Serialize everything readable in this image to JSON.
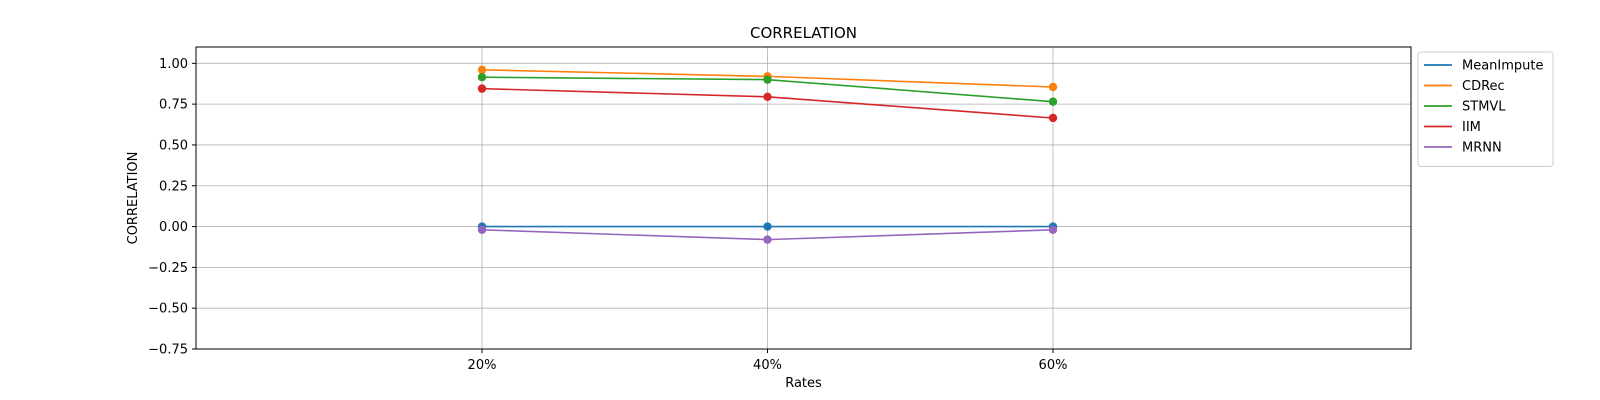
{
  "chart_data": {
    "type": "line",
    "title": "CORRELATION",
    "xlabel": "Rates",
    "ylabel": "CORRELATION",
    "categories": [
      "20%",
      "40%",
      "60%"
    ],
    "ylim": [
      -0.75,
      1.1
    ],
    "yticks": [
      -0.75,
      -0.5,
      -0.25,
      0.0,
      0.25,
      0.5,
      0.75,
      1.0
    ],
    "ytick_labels": [
      "−0.75",
      "−0.50",
      "−0.25",
      "0.00",
      "0.25",
      "0.50",
      "0.75",
      "1.00"
    ],
    "grid": true,
    "legend_position": "outside-top-right",
    "markers": true,
    "series": [
      {
        "name": "MeanImpute",
        "color": "#1f77b4",
        "values": [
          0.0,
          0.0,
          0.0
        ]
      },
      {
        "name": "CDRec",
        "color": "#ff7f0e",
        "values": [
          0.96,
          0.92,
          0.855
        ]
      },
      {
        "name": "STMVL",
        "color": "#2ca02c",
        "values": [
          0.915,
          0.9,
          0.765
        ]
      },
      {
        "name": "IIM",
        "color": "#d62728",
        "values": [
          0.845,
          0.795,
          0.665
        ]
      },
      {
        "name": "MRNN",
        "color": "#9467bd",
        "values": [
          -0.02,
          -0.08,
          -0.02
        ]
      }
    ]
  }
}
